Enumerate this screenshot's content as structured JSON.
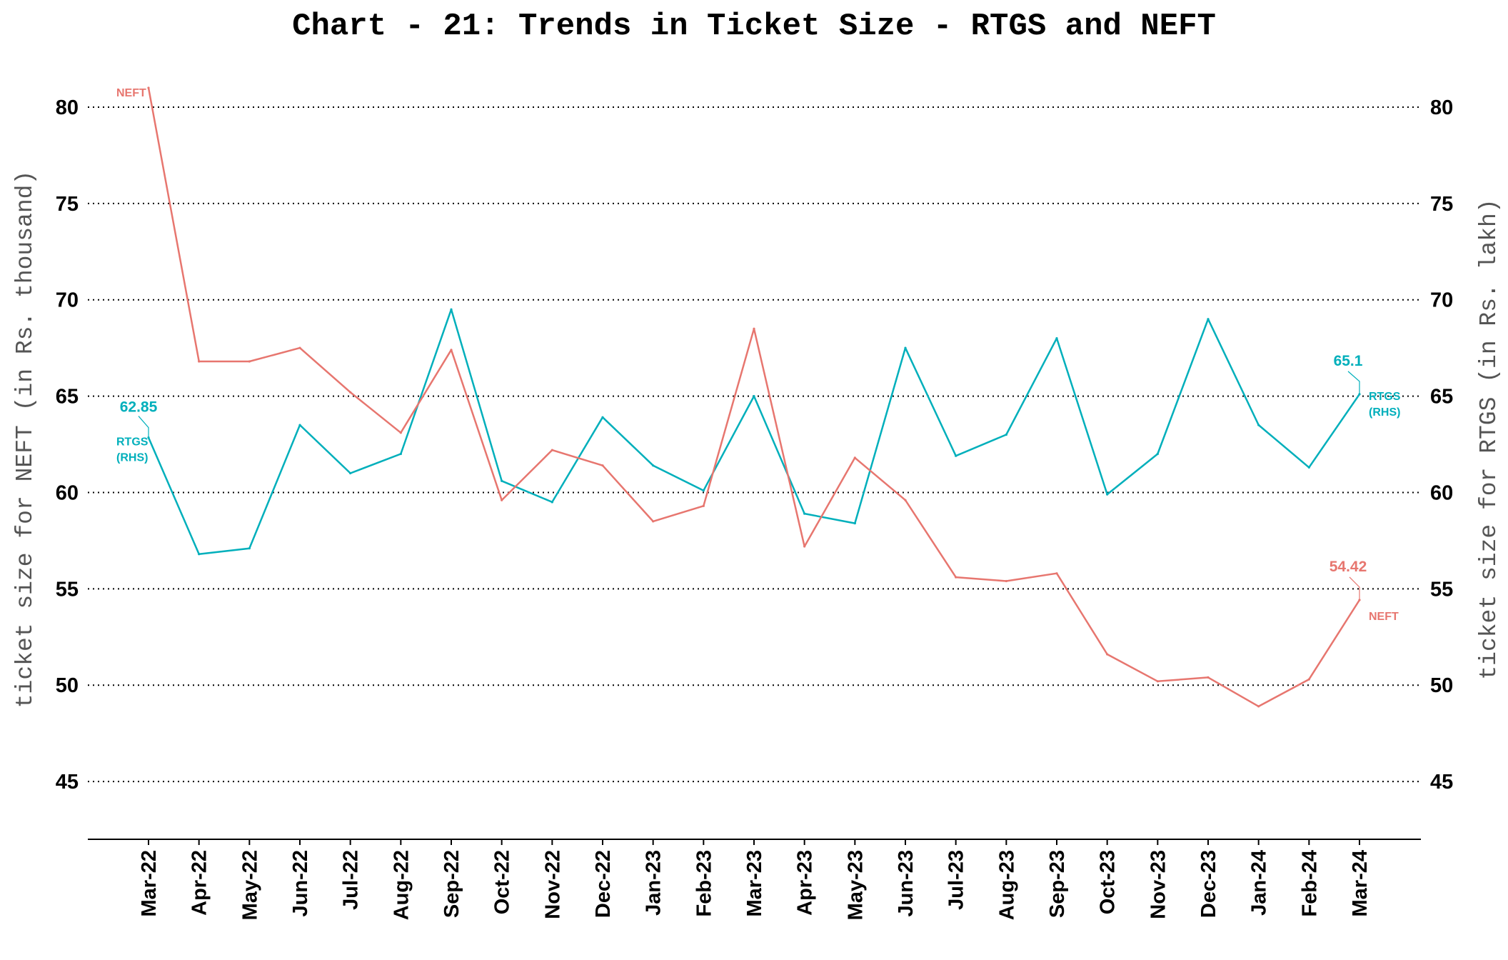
{
  "colors": {
    "rtgs": "#00AFBB",
    "neft": "#E7766F",
    "text": "#000000",
    "axis_title": "#555555"
  },
  "chart_data": {
    "type": "line",
    "title": "Chart - 21: Trends in Ticket Size - RTGS and NEFT",
    "ylabel_left": "ticket size for NEFT (in Rs. thousand)",
    "ylabel_right": "ticket size for RTGS (in Rs. lakh)",
    "ylim": [
      42,
      82
    ],
    "yticks": [
      45,
      50,
      55,
      60,
      65,
      70,
      75,
      80
    ],
    "grid": "horizontal dotted",
    "categories": [
      "Mar-22",
      "Apr-22",
      "May-22",
      "Jun-22",
      "Jul-22",
      "Aug-22",
      "Sep-22",
      "Oct-22",
      "Nov-22",
      "Dec-22",
      "Jan-23",
      "Feb-23",
      "Mar-23",
      "Apr-23",
      "May-23",
      "Jun-23",
      "Jul-23",
      "Aug-23",
      "Sep-23",
      "Oct-23",
      "Nov-23",
      "Dec-23",
      "Jan-24",
      "Feb-24",
      "Mar-24"
    ],
    "series": [
      {
        "key": "rtgs",
        "name": "RTGS (RHS)",
        "tag_line1": "RTGS",
        "tag_line2": "(RHS)",
        "axis": "right",
        "values": [
          62.85,
          56.8,
          57.1,
          63.5,
          61.0,
          62.0,
          69.5,
          60.6,
          59.5,
          63.9,
          61.4,
          60.1,
          65.0,
          58.9,
          58.4,
          67.5,
          61.9,
          63.0,
          68.0,
          59.9,
          62.0,
          69.0,
          63.5,
          61.3,
          65.1
        ],
        "start_label": "62.85",
        "end_label": "65.1"
      },
      {
        "key": "neft",
        "name": "NEFT",
        "tag_line1": "NEFT",
        "tag_line2": "",
        "axis": "left",
        "values": [
          81.0,
          66.8,
          66.8,
          67.5,
          65.2,
          63.1,
          67.4,
          59.6,
          62.2,
          61.4,
          58.5,
          59.3,
          68.5,
          57.2,
          61.8,
          59.6,
          55.6,
          55.4,
          55.8,
          51.6,
          50.2,
          50.4,
          48.9,
          50.3,
          54.42
        ],
        "start_label": "",
        "end_label": "54.42"
      }
    ]
  }
}
